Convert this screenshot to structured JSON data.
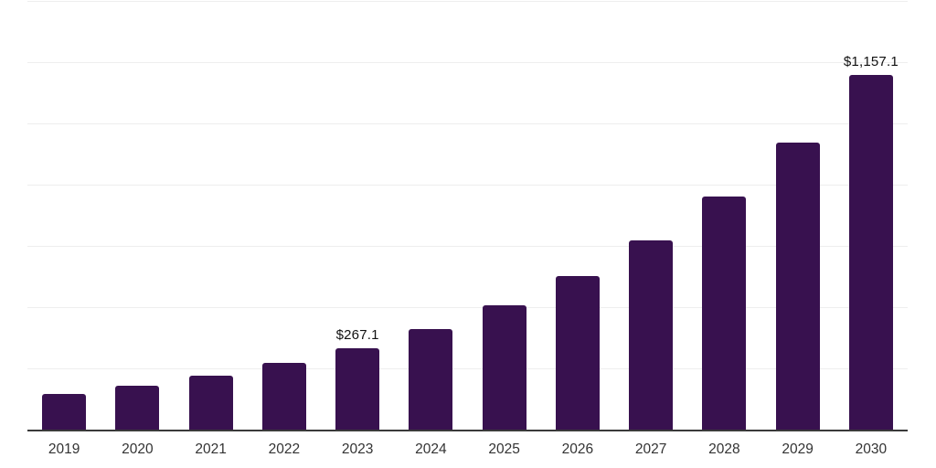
{
  "chart_data": {
    "type": "bar",
    "title": "",
    "xlabel": "",
    "ylabel": "",
    "categories": [
      "2019",
      "2020",
      "2021",
      "2022",
      "2023",
      "2024",
      "2025",
      "2026",
      "2027",
      "2028",
      "2029",
      "2030"
    ],
    "values": [
      115.6,
      142.5,
      175.7,
      216.6,
      267.1,
      329.3,
      406.1,
      500.7,
      617.3,
      761.2,
      938.5,
      1157.1
    ],
    "data_labels": [
      {
        "category": "2023",
        "text": "$267.1"
      },
      {
        "category": "2030",
        "text": "$1,157.1"
      }
    ],
    "ylim": [
      0,
      1400
    ],
    "gridline_interval": 200,
    "grid": "horizontal light gridlines, no y tick labels",
    "legend": "none",
    "colors": {
      "bar": "#38114f",
      "gridline": "#eeeeee",
      "x_axis_line": "#3a3a3a",
      "x_label_text": "#333333",
      "data_label_text": "#111111",
      "background": "#ffffff"
    }
  }
}
